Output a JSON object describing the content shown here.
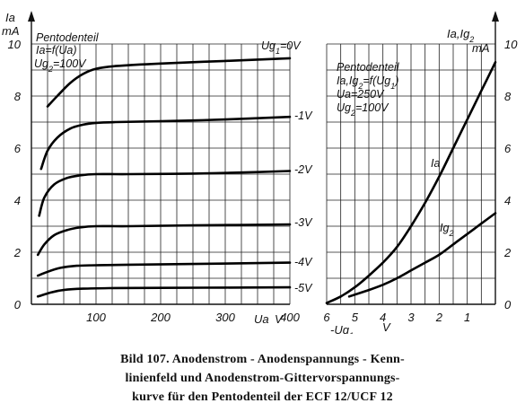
{
  "chart_data": [
    {
      "type": "line",
      "title": "Pentodenteil",
      "annotation": [
        "Ia=f(Ua)",
        "Ug2=100V"
      ],
      "ylabel": [
        "Ia",
        "mA"
      ],
      "xlabel": [
        "Ua",
        "V"
      ],
      "xlim": [
        0,
        400
      ],
      "ylim": [
        0,
        10
      ],
      "x_ticks": [
        "100",
        "200",
        "300",
        "400"
      ],
      "y_ticks": [
        "0",
        "2",
        "4",
        "6",
        "8",
        "10"
      ],
      "grid": true,
      "series": [
        {
          "name": "Ug1=0V",
          "x": [
            25,
            40,
            60,
            80,
            100,
            130,
            200,
            300,
            400
          ],
          "y": [
            7.6,
            8.0,
            8.5,
            8.85,
            9.05,
            9.15,
            9.25,
            9.35,
            9.45
          ]
        },
        {
          "name": "-1V",
          "x": [
            15,
            25,
            40,
            60,
            80,
            100,
            130,
            200,
            300,
            400
          ],
          "y": [
            5.2,
            5.9,
            6.4,
            6.75,
            6.9,
            6.97,
            7.0,
            7.03,
            7.1,
            7.2
          ]
        },
        {
          "name": "-2V",
          "x": [
            12,
            20,
            35,
            55,
            75,
            100,
            150,
            250,
            350,
            400
          ],
          "y": [
            3.4,
            4.1,
            4.6,
            4.85,
            4.95,
            5.0,
            5.0,
            5.02,
            5.08,
            5.12
          ]
        },
        {
          "name": "-3V",
          "x": [
            10,
            20,
            35,
            55,
            75,
            100,
            150,
            250,
            400
          ],
          "y": [
            1.9,
            2.3,
            2.65,
            2.85,
            2.95,
            3.0,
            3.0,
            3.03,
            3.07
          ]
        },
        {
          "name": "-4V",
          "x": [
            10,
            25,
            45,
            70,
            100,
            150,
            250,
            400
          ],
          "y": [
            1.1,
            1.25,
            1.4,
            1.48,
            1.5,
            1.52,
            1.55,
            1.6
          ]
        },
        {
          "name": "-5V",
          "x": [
            10,
            30,
            50,
            80,
            120,
            200,
            300,
            400
          ],
          "y": [
            0.3,
            0.45,
            0.55,
            0.6,
            0.62,
            0.63,
            0.64,
            0.65
          ]
        }
      ]
    },
    {
      "type": "line",
      "title": "Pentodenteil",
      "annotation": [
        "Ia,Ig2=f(Ug1)",
        "Ua=250V",
        "Ug2=100V"
      ],
      "ylabel": [
        "Ia,Ig2",
        "mA"
      ],
      "xlabel": [
        "-Ug1",
        "V"
      ],
      "xlim": [
        6,
        0
      ],
      "ylim": [
        0,
        10
      ],
      "x_ticks": [
        "6",
        "5",
        "4",
        "3",
        "2",
        "1"
      ],
      "y_ticks": [
        "0",
        "2",
        "4",
        "6",
        "8",
        "10"
      ],
      "grid": true,
      "series": [
        {
          "name": "Ia",
          "x": [
            6.0,
            5.5,
            5.0,
            4.5,
            4.0,
            3.5,
            3.0,
            2.5,
            2.0,
            1.5,
            1.0,
            0.5,
            0.0
          ],
          "y": [
            0.05,
            0.3,
            0.65,
            1.1,
            1.6,
            2.2,
            3.0,
            3.9,
            4.9,
            6.0,
            7.1,
            8.2,
            9.3
          ]
        },
        {
          "name": "Ig2",
          "x": [
            5.2,
            4.5,
            4.0,
            3.5,
            3.0,
            2.5,
            2.0,
            1.5,
            1.0,
            0.5,
            0.0
          ],
          "y": [
            0.3,
            0.55,
            0.75,
            1.0,
            1.3,
            1.6,
            1.9,
            2.3,
            2.7,
            3.1,
            3.5
          ]
        }
      ]
    }
  ],
  "caption": {
    "line1": "Bild 107.    Anodenstrom - Anodenspannungs - Kenn-",
    "line2": "linienfeld    und    Anodenstrom-Gittervorspannungs-",
    "line3": "kurve  für  den  Pentodenteil  der  ECF 12/UCF 12"
  }
}
